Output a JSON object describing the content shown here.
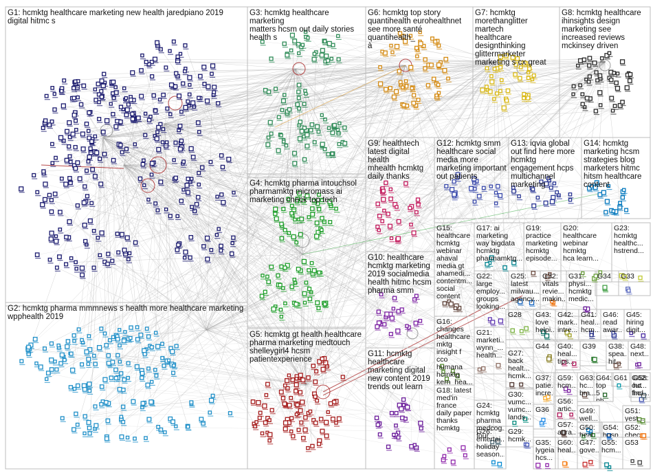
{
  "groups": [
    {
      "id": "G1",
      "label": "G1: hcmktg healthcare marketing new health jaredpiano 2019\ndigital hitmc s",
      "color": "#1a1a6e"
    },
    {
      "id": "G2",
      "label": "G2: hcmktg pharma mmmnews s health more healthcare marketing\nwpphealth 2019",
      "color": "#1f8fc8"
    },
    {
      "id": "G3",
      "label": "G3: hcmktg healthcare marketing\nmatters hcsm out daily stories\nhealth s",
      "color": "#2e8b57"
    },
    {
      "id": "G4",
      "label": "G4: hcmktg pharma intouchsol\npharmamktg micromass ai\nmarketing check top tech",
      "color": "#1e9e2a"
    },
    {
      "id": "G5",
      "label": "G5: hcmktg gt health healthcare\npharma marketing medtouch\nshelleygirl4 hcsm\npatientexperience",
      "color": "#a51c1c"
    },
    {
      "id": "G6",
      "label": "G6: hcmktg top story\nquantihealth eurohealthnet\nsee more santé quantihealth_\nà",
      "color": "#d48a12"
    },
    {
      "id": "G7",
      "label": "G7: hcmktg\nmorethanglitter martech\nhealthcare\ndesignthinking\nglittermarketer\nmarketing s cx great",
      "color": "#d9b814"
    },
    {
      "id": "G8",
      "label": "G8: hcmktg healthcare\nihinsights design\nmarketing see\nincreased reviews\nmckinsey driven",
      "color": "#2a2a2a"
    },
    {
      "id": "G9",
      "label": "G9: healthtech\nlatest digital health\nmhealth hcmktg\ndaily thanks",
      "color": "#c2185b"
    },
    {
      "id": "G10",
      "label": "G10: healthcare\nhcmktg marketing\n2019 socialmedia\nhealth hitmc hcsm\npharma smm",
      "color": "#7b1fa2"
    },
    {
      "id": "G11",
      "label": "G11: hcmktg\nhealthcare\nmarketing digital\nnew content 2019\ntrends out learn",
      "color": "#6a1b9a"
    },
    {
      "id": "G12",
      "label": "G12: hcmktg smm\nhealthcare social\nmedia more\nmarketing important\nout patients",
      "color": "#3949ab"
    },
    {
      "id": "G13",
      "label": "G13: iqvia global\nout find here more\nhcmktg\nengagement hcps\nmultichannel\nmarketing",
      "color": "#283593"
    },
    {
      "id": "G14",
      "label": "G14: hcmktg\nmarketing hcsm\nstrategies blog\nmarketers hitmc\nhitsm healthcare\ncontent",
      "color": "#0277bd"
    },
    {
      "id": "G15",
      "label": "G15:\nhealthcare\nhcmktg\nwebinar\nahaval\nmedia gt\nahamedi...\ncontentm...\nsocial\ncontent",
      "color": "#5d4037"
    },
    {
      "id": "G16",
      "label": "G16:\nchanges\nhealthcare\nmktg\ninsight f\ncco\nhumana\nhcmktg\nkern_hea...",
      "color": "#558b2f"
    },
    {
      "id": "G17",
      "label": "G17: ai\nmarketing\nway bigdata\nhcmktg\npharmamktg...",
      "color": "#00838f"
    },
    {
      "id": "G18",
      "label": "G18: latest\nmed'in\nfrance\ndaily paper\nthanks\nhcmktg",
      "color": "#8e24aa"
    },
    {
      "id": "G19",
      "label": "G19:\npractice\nmarketing\nhcmktg\nepisode...",
      "color": "#6d4c41"
    },
    {
      "id": "G20",
      "label": "G20:\nhealthcare\nwebinar\nhcmktg\nhca learn...",
      "color": "#689f38"
    },
    {
      "id": "G21",
      "label": "G21:\nmarketi...\nwynn_...\nhealth...",
      "color": "#8d6e63"
    },
    {
      "id": "G22",
      "label": "G22:\nlarge\nemploy...\ngroups\nlooking...",
      "color": "#5e35b1"
    },
    {
      "id": "G23",
      "label": "G23:\nhcmktg\nhealthc...\nhstrend...",
      "color": "#c0ca33"
    },
    {
      "id": "G24",
      "label": "G24:\nhcmktg\npharma\nmedcog...\nfour",
      "color": "#546e7a"
    },
    {
      "id": "G25",
      "label": "G25:\nlatest\nmilwau...\nagency...",
      "color": "#1565c0"
    },
    {
      "id": "G26",
      "label": "G26:\nentertai...\nholiday\nseason...",
      "color": "#0288d1"
    },
    {
      "id": "G27",
      "label": "G27:\nback\nhealt...\nhcmk...",
      "color": "#4e342e"
    },
    {
      "id": "G28",
      "label": "G28",
      "color": "#7cb342"
    },
    {
      "id": "G29",
      "label": "G29:\nhcmk...",
      "color": "#3f51b5"
    },
    {
      "id": "G30",
      "label": "G30:\nvumc...\nvumc...\nlands...",
      "color": "#00897b"
    },
    {
      "id": "G31",
      "label": "G31:\nphysi...\nhcmktg\nmedic...",
      "color": "#6a1b9a"
    },
    {
      "id": "G32",
      "label": "G32:\nvitals\nrevie...\nmakin...",
      "color": "#ef6c00"
    },
    {
      "id": "G33",
      "label": "G33",
      "color": "#5c6bc0"
    },
    {
      "id": "G34",
      "label": "G34",
      "color": "#43a047"
    },
    {
      "id": "G35",
      "label": "G35:\nlygeia\nhcs...",
      "color": "#8e24aa"
    },
    {
      "id": "G36",
      "label": "G36",
      "color": "#1e88e5"
    },
    {
      "id": "G37",
      "label": "G37:\npatie...\nincre...",
      "color": "#f9a825"
    },
    {
      "id": "G38",
      "label": "G38:\nspea...\nhit...",
      "color": "#6d4c41"
    },
    {
      "id": "G39",
      "label": "G39",
      "color": "#2e7d32"
    },
    {
      "id": "G40",
      "label": "G40:\nheal...\ntips...",
      "color": "#ad1457"
    },
    {
      "id": "G41",
      "label": "G41:\nheal...\nhcm...",
      "color": "#1a237e"
    },
    {
      "id": "G42",
      "label": "G42:\nmark...\nintre...",
      "color": "#9e9d24"
    },
    {
      "id": "G43",
      "label": "G43:\nlove\nhelpi...",
      "color": "#00695c"
    },
    {
      "id": "G44",
      "label": "G44",
      "color": "#827717"
    },
    {
      "id": "G45",
      "label": "G45:\nhiring\ndigit...",
      "color": "#4527a0"
    },
    {
      "id": "G46",
      "label": "G46:\nread\nawar...",
      "color": "#283593"
    },
    {
      "id": "G47",
      "label": "G47:\ngove...",
      "color": "#c62828"
    },
    {
      "id": "G48",
      "label": "G48:\nnext...",
      "color": "#6a1b9a"
    },
    {
      "id": "G49",
      "label": "G49:\nwell...",
      "color": "#0277bd"
    },
    {
      "id": "G50",
      "label": "G50:\nheal...",
      "color": "#2e7d32"
    },
    {
      "id": "G51",
      "label": "G51:\nyest...",
      "color": "#558b2f"
    },
    {
      "id": "G52",
      "label": "G52:\nchec...",
      "color": "#ef6c00"
    },
    {
      "id": "G53",
      "label": "G53",
      "color": "#424242"
    },
    {
      "id": "G54",
      "label": "G54:\nhosp...",
      "color": "#1565c0"
    },
    {
      "id": "G55",
      "label": "G55:\nhcm...",
      "color": "#00838f"
    },
    {
      "id": "G56",
      "label": "G56:\nartic...",
      "color": "#ad1457"
    },
    {
      "id": "G57",
      "label": "G57:\nattra...",
      "color": "#4e342e"
    },
    {
      "id": "G58",
      "label": "G58:\nhc...\nhc...",
      "color": "#3949ab"
    },
    {
      "id": "G59",
      "label": "G59:\nhcm...",
      "color": "#7b1fa2"
    },
    {
      "id": "G60",
      "label": "G60:\nheal...",
      "color": "#f57f17"
    },
    {
      "id": "G61",
      "label": "G61",
      "color": "#0097a7"
    },
    {
      "id": "G62",
      "label": "G62:\nout\nfind...",
      "color": "#455a64"
    },
    {
      "id": "G63",
      "label": "G63:\nhc...\nbra...",
      "color": "#5d4037"
    },
    {
      "id": "G64",
      "label": "G64:\ntop 5\nph...",
      "color": "#1b5e20"
    }
  ]
}
